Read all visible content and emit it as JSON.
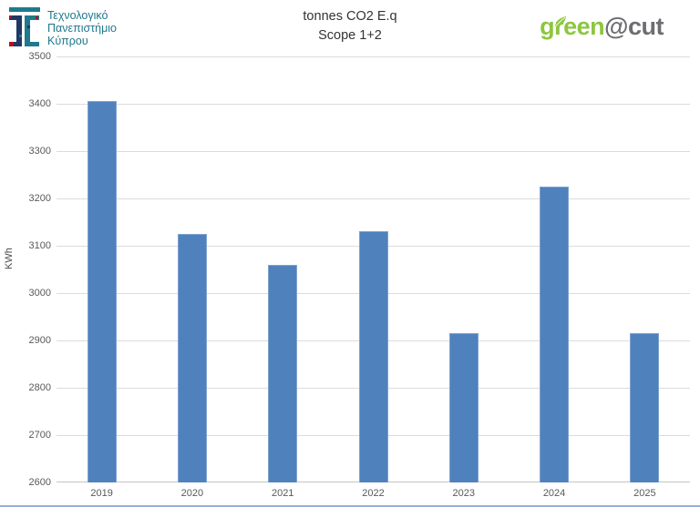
{
  "header": {
    "university": {
      "name_line1": "Τεχνολογικό",
      "name_line2": "Πανεπιστήμιο",
      "name_line3": "Κύπρου",
      "logo_colors": {
        "teal": "#20798C",
        "navy": "#1F3864",
        "red": "#B5121B"
      }
    },
    "title_line1": "tonnes CO2 E.q",
    "title_line2": "Scope 1+2",
    "brand": {
      "green_part": "green",
      "gray_part": "@cut",
      "green_color": "#8DC63F",
      "gray_color": "#6D6E71",
      "leaf_icon": "leaf-icon"
    }
  },
  "chart_data": {
    "type": "bar",
    "title": "tonnes CO2 E.q",
    "subtitle": "Scope 1+2",
    "categories": [
      "2019",
      "2020",
      "2021",
      "2022",
      "2023",
      "2024",
      "2025"
    ],
    "values": [
      3405,
      3125,
      3060,
      3130,
      2915,
      3225,
      2915
    ],
    "xlabel": "",
    "ylabel": "KWh",
    "ylim": [
      2600,
      3500
    ],
    "ytick_step": 100,
    "grid": true,
    "legend": "none",
    "bar_color": "#4F81BD",
    "gridline_color": "#DCDCDC"
  },
  "footer": {
    "border_color": "#95B3D7"
  }
}
